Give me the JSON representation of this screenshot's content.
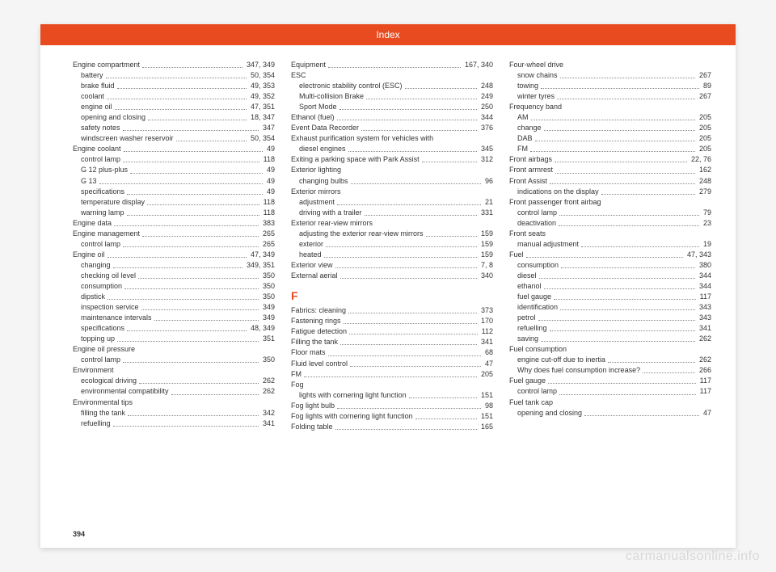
{
  "header": {
    "title": "Index"
  },
  "page_number": "394",
  "watermark": "carmanualsonline.info",
  "columns": [
    {
      "items": [
        {
          "t": "entry",
          "label": "Engine compartment",
          "page": "347, 349"
        },
        {
          "t": "sub",
          "label": "battery",
          "page": "50, 354"
        },
        {
          "t": "sub",
          "label": "brake fluid",
          "page": "49, 353"
        },
        {
          "t": "sub",
          "label": "coolant",
          "page": "49, 352"
        },
        {
          "t": "sub",
          "label": "engine oil",
          "page": "47, 351"
        },
        {
          "t": "sub",
          "label": "opening and closing",
          "page": "18, 347"
        },
        {
          "t": "sub",
          "label": "safety notes",
          "page": "347"
        },
        {
          "t": "sub",
          "label": "windscreen washer reservoir",
          "page": "50, 354"
        },
        {
          "t": "entry",
          "label": "Engine coolant",
          "page": "49"
        },
        {
          "t": "sub",
          "label": "control lamp",
          "page": "118"
        },
        {
          "t": "sub",
          "label": "G 12 plus-plus",
          "page": "49"
        },
        {
          "t": "sub",
          "label": "G 13",
          "page": "49"
        },
        {
          "t": "sub",
          "label": "specifications",
          "page": "49"
        },
        {
          "t": "sub",
          "label": "temperature display",
          "page": "118"
        },
        {
          "t": "sub",
          "label": "warning lamp",
          "page": "118"
        },
        {
          "t": "entry",
          "label": "Engine data",
          "page": "383"
        },
        {
          "t": "entry",
          "label": "Engine management",
          "page": "265"
        },
        {
          "t": "sub",
          "label": "control lamp",
          "page": "265"
        },
        {
          "t": "entry",
          "label": "Engine oil",
          "page": "47, 349"
        },
        {
          "t": "sub",
          "label": "changing",
          "page": "349, 351"
        },
        {
          "t": "sub",
          "label": "checking oil level",
          "page": "350"
        },
        {
          "t": "sub",
          "label": "consumption",
          "page": "350"
        },
        {
          "t": "sub",
          "label": "dipstick",
          "page": "350"
        },
        {
          "t": "sub",
          "label": "inspection service",
          "page": "349"
        },
        {
          "t": "sub",
          "label": "maintenance intervals",
          "page": "349"
        },
        {
          "t": "sub",
          "label": "specifications",
          "page": "48, 349"
        },
        {
          "t": "sub",
          "label": "topping up",
          "page": "351"
        },
        {
          "t": "entry",
          "label": "Engine oil pressure",
          "page": ""
        },
        {
          "t": "sub",
          "label": "control lamp",
          "page": "350"
        },
        {
          "t": "entry",
          "label": "Environment",
          "page": ""
        },
        {
          "t": "sub",
          "label": "ecological driving",
          "page": "262"
        },
        {
          "t": "sub",
          "label": "environmental compatibility",
          "page": "262"
        },
        {
          "t": "entry",
          "label": "Environmental tips",
          "page": ""
        },
        {
          "t": "sub",
          "label": "filling the tank",
          "page": "342"
        },
        {
          "t": "sub",
          "label": "refuelling",
          "page": "341"
        }
      ]
    },
    {
      "items": [
        {
          "t": "entry",
          "label": "Equipment",
          "page": "167, 340"
        },
        {
          "t": "entry",
          "label": "ESC",
          "page": ""
        },
        {
          "t": "sub",
          "label": "electronic stability control (ESC)",
          "page": "248"
        },
        {
          "t": "sub",
          "label": "Multi-collision Brake",
          "page": "249"
        },
        {
          "t": "sub",
          "label": "Sport Mode",
          "page": "250"
        },
        {
          "t": "entry",
          "label": "Ethanol (fuel)",
          "page": "344"
        },
        {
          "t": "entry",
          "label": "Event Data Recorder",
          "page": "376"
        },
        {
          "t": "entry",
          "label": "Exhaust purification system for vehicles with",
          "page": ""
        },
        {
          "t": "sub",
          "label": "diesel engines",
          "page": "345"
        },
        {
          "t": "entry",
          "label": "Exiting a parking space with Park Assist",
          "page": "312"
        },
        {
          "t": "entry",
          "label": "Exterior lighting",
          "page": ""
        },
        {
          "t": "sub",
          "label": "changing bulbs",
          "page": "96"
        },
        {
          "t": "entry",
          "label": "Exterior mirrors",
          "page": ""
        },
        {
          "t": "sub",
          "label": "adjustment",
          "page": "21"
        },
        {
          "t": "sub",
          "label": "driving with a trailer",
          "page": "331"
        },
        {
          "t": "entry",
          "label": "Exterior rear-view mirrors",
          "page": ""
        },
        {
          "t": "sub",
          "label": "adjusting the exterior rear-view mirrors",
          "page": "159"
        },
        {
          "t": "sub",
          "label": "exterior",
          "page": "159"
        },
        {
          "t": "sub",
          "label": "heated",
          "page": "159"
        },
        {
          "t": "entry",
          "label": "Exterior view",
          "page": "7, 8"
        },
        {
          "t": "entry",
          "label": "External aerial",
          "page": "340"
        },
        {
          "t": "letter",
          "label": "F"
        },
        {
          "t": "entry",
          "label": "Fabrics: cleaning",
          "page": "373"
        },
        {
          "t": "entry",
          "label": "Fastening rings",
          "page": "170"
        },
        {
          "t": "entry",
          "label": "Fatigue detection",
          "page": "112"
        },
        {
          "t": "entry",
          "label": "Filling the tank",
          "page": "341"
        },
        {
          "t": "entry",
          "label": "Floor mats",
          "page": "68"
        },
        {
          "t": "entry",
          "label": "Fluid level control",
          "page": "47"
        },
        {
          "t": "entry",
          "label": "FM",
          "page": "205"
        },
        {
          "t": "entry",
          "label": "Fog",
          "page": ""
        },
        {
          "t": "sub",
          "label": "lights with cornering light function",
          "page": "151"
        },
        {
          "t": "entry",
          "label": "Fog light bulb",
          "page": "98"
        },
        {
          "t": "entry",
          "label": "Fog lights with cornering light function",
          "page": "151"
        },
        {
          "t": "entry",
          "label": "Folding table",
          "page": "165"
        }
      ]
    },
    {
      "items": [
        {
          "t": "entry",
          "label": "Four-wheel drive",
          "page": ""
        },
        {
          "t": "sub",
          "label": "snow chains",
          "page": "267"
        },
        {
          "t": "sub",
          "label": "towing",
          "page": "89"
        },
        {
          "t": "sub",
          "label": "winter tyres",
          "page": "267"
        },
        {
          "t": "entry",
          "label": "Frequency band",
          "page": ""
        },
        {
          "t": "sub",
          "label": "AM",
          "page": "205"
        },
        {
          "t": "sub",
          "label": "change",
          "page": "205"
        },
        {
          "t": "sub",
          "label": "DAB",
          "page": "205"
        },
        {
          "t": "sub",
          "label": "FM",
          "page": "205"
        },
        {
          "t": "entry",
          "label": "Front airbags",
          "page": "22, 76"
        },
        {
          "t": "entry",
          "label": "Front armrest",
          "page": "162"
        },
        {
          "t": "entry",
          "label": "Front Assist",
          "page": "248"
        },
        {
          "t": "sub",
          "label": "indications on the display",
          "page": "279"
        },
        {
          "t": "entry",
          "label": "Front passenger front airbag",
          "page": ""
        },
        {
          "t": "sub",
          "label": "control lamp",
          "page": "79"
        },
        {
          "t": "sub",
          "label": "deactivation",
          "page": "23"
        },
        {
          "t": "entry",
          "label": "Front seats",
          "page": ""
        },
        {
          "t": "sub",
          "label": "manual adjustment",
          "page": "19"
        },
        {
          "t": "entry",
          "label": "Fuel",
          "page": "47, 343"
        },
        {
          "t": "sub",
          "label": "consumption",
          "page": "380"
        },
        {
          "t": "sub",
          "label": "diesel",
          "page": "344"
        },
        {
          "t": "sub",
          "label": "ethanol",
          "page": "344"
        },
        {
          "t": "sub",
          "label": "fuel gauge",
          "page": "117"
        },
        {
          "t": "sub",
          "label": "identification",
          "page": "343"
        },
        {
          "t": "sub",
          "label": "petrol",
          "page": "343"
        },
        {
          "t": "sub",
          "label": "refuelling",
          "page": "341"
        },
        {
          "t": "sub",
          "label": "saving",
          "page": "262"
        },
        {
          "t": "entry",
          "label": "Fuel consumption",
          "page": ""
        },
        {
          "t": "sub",
          "label": "engine cut-off due to inertia",
          "page": "262"
        },
        {
          "t": "sub",
          "label": "Why does fuel consumption increase?",
          "page": "266"
        },
        {
          "t": "entry",
          "label": "Fuel gauge",
          "page": "117"
        },
        {
          "t": "sub",
          "label": "control lamp",
          "page": "117"
        },
        {
          "t": "entry",
          "label": "Fuel tank cap",
          "page": ""
        },
        {
          "t": "sub",
          "label": "opening and closing",
          "page": "47"
        }
      ]
    }
  ]
}
